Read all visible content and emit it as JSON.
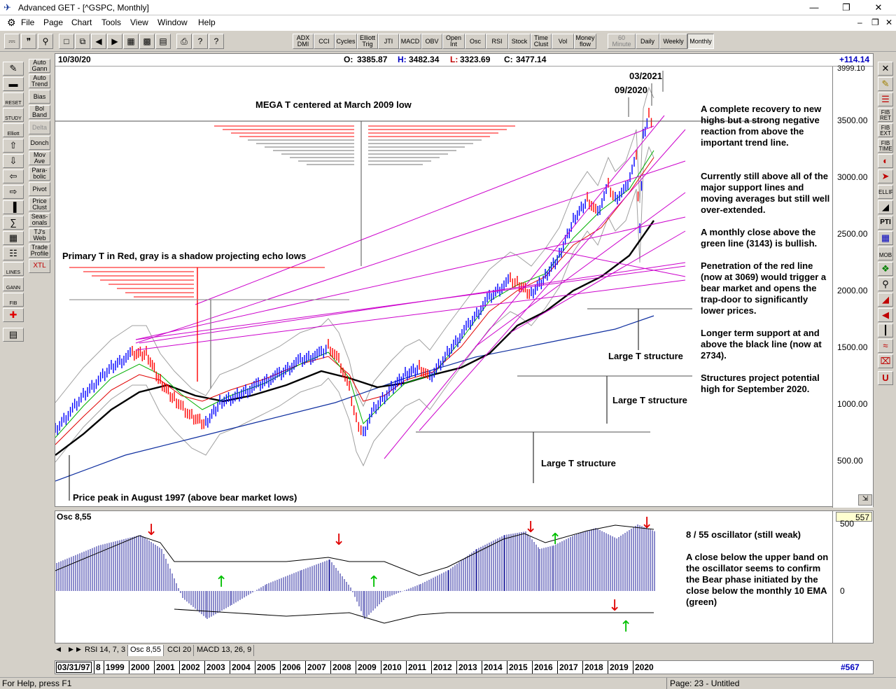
{
  "window": {
    "title": "Advanced GET - [^GSPC, Monthly]"
  },
  "menu": [
    "File",
    "Page",
    "Chart",
    "Tools",
    "View",
    "Window",
    "Help"
  ],
  "indicator_toolbar": [
    {
      "label": "ADX DMI"
    },
    {
      "label": "CCI"
    },
    {
      "label": "Cycles"
    },
    {
      "label": "Elliott Trig"
    },
    {
      "label": "JTI"
    },
    {
      "label": "MACD"
    },
    {
      "label": "OBV"
    },
    {
      "label": "Open Int"
    },
    {
      "label": "Osc"
    },
    {
      "label": "RSI"
    },
    {
      "label": "Stock"
    },
    {
      "label": "Time Clust"
    },
    {
      "label": "Vol"
    },
    {
      "label": "Money flow"
    }
  ],
  "period_toolbar": [
    {
      "label": "60 Minute"
    },
    {
      "label": "Daily"
    },
    {
      "label": "Weekly"
    },
    {
      "label": "Monthly"
    }
  ],
  "left_tools": [
    {
      "label": "Auto Gann"
    },
    {
      "label": "Auto Trend"
    },
    {
      "label": "Bias"
    },
    {
      "label": "Bol Band"
    },
    {
      "label": "Delta"
    },
    {
      "label": "Donch"
    },
    {
      "label": "Mov Ave"
    },
    {
      "label": "Para-bolic"
    },
    {
      "label": "Pivot"
    },
    {
      "label": "Price Clust"
    },
    {
      "label": "Seas-onals"
    },
    {
      "label": "TJ's Web"
    },
    {
      "label": "Trade Profile"
    },
    {
      "label": "XTL"
    }
  ],
  "left_icons": [
    {
      "label": "RESET"
    },
    {
      "label": "STUDY"
    },
    {
      "label": "Elliott"
    },
    {
      "label": "LINES"
    },
    {
      "label": "GANN"
    },
    {
      "label": "FIB"
    }
  ],
  "right_tools": [
    {
      "label": "FIB RET"
    },
    {
      "label": "FIB EXT"
    },
    {
      "label": "FIB TIME"
    },
    {
      "label": "ELLIPS"
    },
    {
      "label": "PTI"
    },
    {
      "label": "MOB"
    }
  ],
  "chart": {
    "date": "10/30/20",
    "ohlc": {
      "o_label": "O:",
      "o": "3385.87",
      "h_label": "H:",
      "h": "3482.34",
      "l_label": "L:",
      "l": "3323.69",
      "c_label": "C:",
      "c": "3477.14"
    },
    "change": "+114.14",
    "y_top_label": "3999.10",
    "y_ticks": [
      "3500.00",
      "3000.00",
      "2500.00",
      "2000.00",
      "1500.00",
      "1000.00",
      "500.00"
    ],
    "annotations": {
      "mega_t": "MEGA T centered at March 2009 low",
      "primary_t": "Primary T in Red, gray is a shadow projecting echo lows",
      "price_peak": "Price peak in August 1997 (above bear market lows)",
      "large_t_1": "Large T structure",
      "large_t_2": "Large T structure",
      "large_t_3": "Large T structure",
      "date_2021": "03/2021",
      "date_2020": "09/2020"
    },
    "commentary": [
      "A complete recovery to new highs but a strong negative reaction from above the important trend line.",
      "Currently still above all of the major support lines and moving averages but still well over-extended.",
      "A monthly close above the green line (3143) is bullish.",
      "Penetration of the red line (now at 3069) would trigger a bear market and opens the trap-door to significantly lower prices.",
      "Longer term support at and above the black line (now at 2734).",
      "Structures project potential high for September 2020."
    ]
  },
  "oscillator": {
    "label": "Osc 8,55",
    "value": "557",
    "y_ticks": [
      "500",
      "0"
    ],
    "commentary": [
      "8 / 55 oscillator (still weak)",
      "A close below the upper band on the oscillator seems to confirm the Bear phase initiated by the close below the monthly 10 EMA (green)"
    ]
  },
  "tabs": [
    "RSI 14, 7, 3",
    "Osc 8,55",
    "CCI 20",
    "MACD 13, 26, 9"
  ],
  "x_axis": {
    "start_date": "03/31/97",
    "years": [
      "8",
      "1999",
      "2000",
      "2001",
      "2002",
      "2003",
      "2004",
      "2005",
      "2006",
      "2007",
      "2008",
      "2009",
      "2010",
      "2011",
      "2012",
      "2013",
      "2014",
      "2015",
      "2016",
      "2017",
      "2018",
      "2019",
      "2020"
    ],
    "bar_count": "#567"
  },
  "status": {
    "help": "For Help, press F1",
    "page": "Page: 23 - Untitled"
  },
  "colors": {
    "up_bar": "#0000ff",
    "down_bar": "#ff0000",
    "trend_line": "#cc00cc",
    "ema10": "#00b000",
    "ma_red": "#e00000",
    "ma_black": "#000000",
    "ma_blue": "#1030a0",
    "band_gray": "#a0a0a0",
    "change_text": "#0000c0"
  }
}
